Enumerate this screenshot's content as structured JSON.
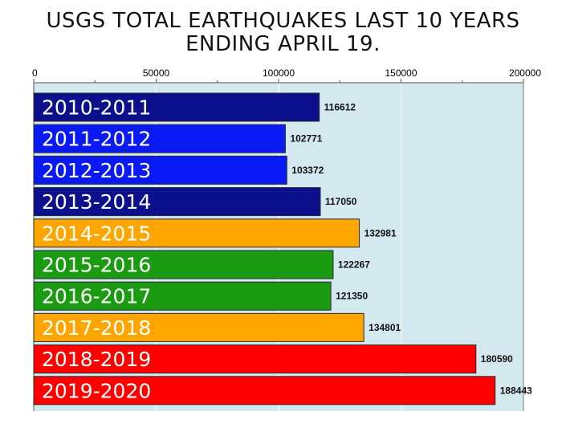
{
  "chart_data": {
    "type": "bar",
    "orientation": "horizontal",
    "title": "USGS TOTAL EARTHQUAKES LAST 10 YEARS ENDING APRIL 19.",
    "title_lines": [
      "USGS TOTAL EARTHQUAKES LAST 10 YEARS",
      "ENDING APRIL 19."
    ],
    "xlabel": "",
    "ylabel": "",
    "xlim": [
      0,
      200000
    ],
    "x_ticks": [
      "0",
      "50000",
      "100000",
      "150000",
      "200000"
    ],
    "x_tick_values": [
      0,
      50000,
      100000,
      150000,
      200000
    ],
    "grid": true,
    "legend": "none",
    "plot_background": "#d4e8f0",
    "categories": [
      "2010-2011",
      "2011-2012",
      "2012-2013",
      "2013-2014",
      "2014-2015",
      "2015-2016",
      "2016-2017",
      "2017-2018",
      "2018-2019",
      "2019-2020"
    ],
    "values": [
      116612,
      102771,
      103372,
      117050,
      132981,
      122267,
      121350,
      134801,
      180590,
      188443
    ],
    "bar_colors": [
      "#0c108c",
      "#0a1af5",
      "#0a1af5",
      "#0c108c",
      "#ffa500",
      "#1b9b12",
      "#1b9b12",
      "#ffa500",
      "#ff0000",
      "#ff0000"
    ],
    "value_labels": [
      "116612",
      "102771",
      "103372",
      "117050",
      "132981",
      "122267",
      "121350",
      "134801",
      "180590",
      "188443"
    ]
  }
}
